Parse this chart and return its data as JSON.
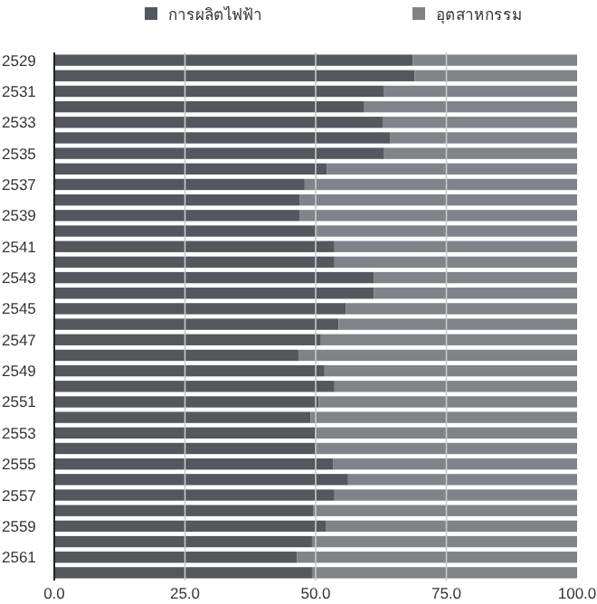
{
  "chart_data": {
    "type": "bar",
    "orientation": "horizontal",
    "stacked": true,
    "categories": [
      "2529",
      null,
      "2531",
      null,
      "2533",
      null,
      "2535",
      null,
      "2537",
      null,
      "2539",
      null,
      "2541",
      null,
      "2543",
      null,
      "2545",
      null,
      "2547",
      null,
      "2549",
      null,
      "2551",
      null,
      "2553",
      null,
      "2555",
      null,
      "2557",
      null,
      "2559",
      null,
      "2561",
      null
    ],
    "series": [
      {
        "name": "การผลิตไฟฟ้า",
        "color": "#54575c",
        "values": [
          68.6,
          68.9,
          63.1,
          59.3,
          62.8,
          64.3,
          63.1,
          52.1,
          47.9,
          46.9,
          46.9,
          50.2,
          53.6,
          53.6,
          61.1,
          61.1,
          55.8,
          54.4,
          51.0,
          46.7,
          51.7,
          53.6,
          50.6,
          49.0,
          49.9,
          50.2,
          53.4,
          56.2,
          53.6,
          49.6,
          51.9,
          49.3,
          46.4,
          49.3
        ]
      },
      {
        "name": "อุตสาหกรรม",
        "color": "#808489",
        "values": [
          31.4,
          31.1,
          36.9,
          40.7,
          37.2,
          35.7,
          36.9,
          47.9,
          52.1,
          53.1,
          53.1,
          49.8,
          46.4,
          46.4,
          38.9,
          38.9,
          44.2,
          45.6,
          49.0,
          53.3,
          48.3,
          46.4,
          49.4,
          51.0,
          50.1,
          49.8,
          46.6,
          43.8,
          46.4,
          50.4,
          48.1,
          50.7,
          53.6,
          50.7
        ]
      }
    ],
    "xlim": [
      0,
      100
    ],
    "xticks": [
      {
        "value": 0,
        "label": "0.0"
      },
      {
        "value": 25,
        "label": "25.0"
      },
      {
        "value": 50,
        "label": "50.0"
      },
      {
        "value": 75,
        "label": "75.0"
      },
      {
        "value": 100,
        "label": "100.0"
      }
    ],
    "grid": "x",
    "legend": "top"
  }
}
